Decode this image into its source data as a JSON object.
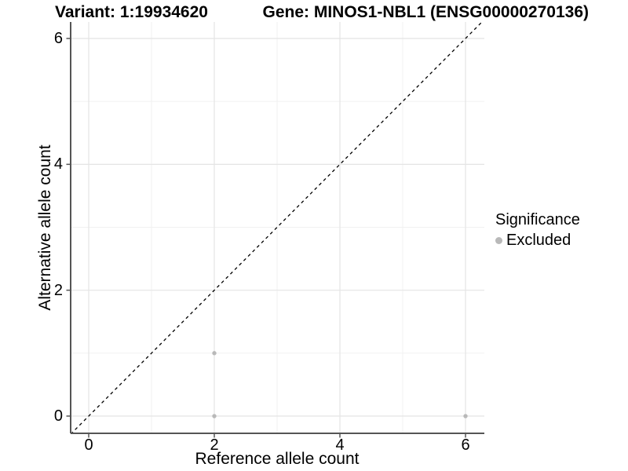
{
  "header": {
    "left_title": "Variant: 1:19934620",
    "right_title": "Gene: MINOS1-NBL1 (ENSG00000270136)"
  },
  "chart_data": {
    "type": "scatter",
    "xlabel": "Reference allele count",
    "ylabel": "Alternative allele count",
    "xlim": [
      -0.2875,
      6.3
    ],
    "ylim": [
      -0.274,
      6.262
    ],
    "x_major_ticks": [
      0,
      2,
      4,
      6
    ],
    "y_major_ticks": [
      0,
      2,
      4,
      6
    ],
    "x_minor_ticks": [
      1,
      3,
      5
    ],
    "y_minor_ticks": [
      1,
      3,
      5
    ],
    "grid": true,
    "identity_line": {
      "show": true,
      "style": "dashed",
      "slope": 1,
      "intercept": 0,
      "color": "#000000"
    },
    "series": [
      {
        "name": "Excluded",
        "color": "#b9b9b9",
        "marker_radius": 2.7,
        "points": [
          [
            2,
            0
          ],
          [
            2,
            1
          ],
          [
            6,
            0
          ]
        ]
      }
    ],
    "legend": {
      "title": "Significance",
      "position": "right",
      "entries": [
        {
          "label": "Excluded",
          "color": "#b9b9b9"
        }
      ]
    }
  },
  "colors": {
    "background": "#ffffff",
    "axis": "#555555",
    "grid_major": "#e4e4e4",
    "grid_minor": "#f1f1f1",
    "text": "#000000"
  }
}
